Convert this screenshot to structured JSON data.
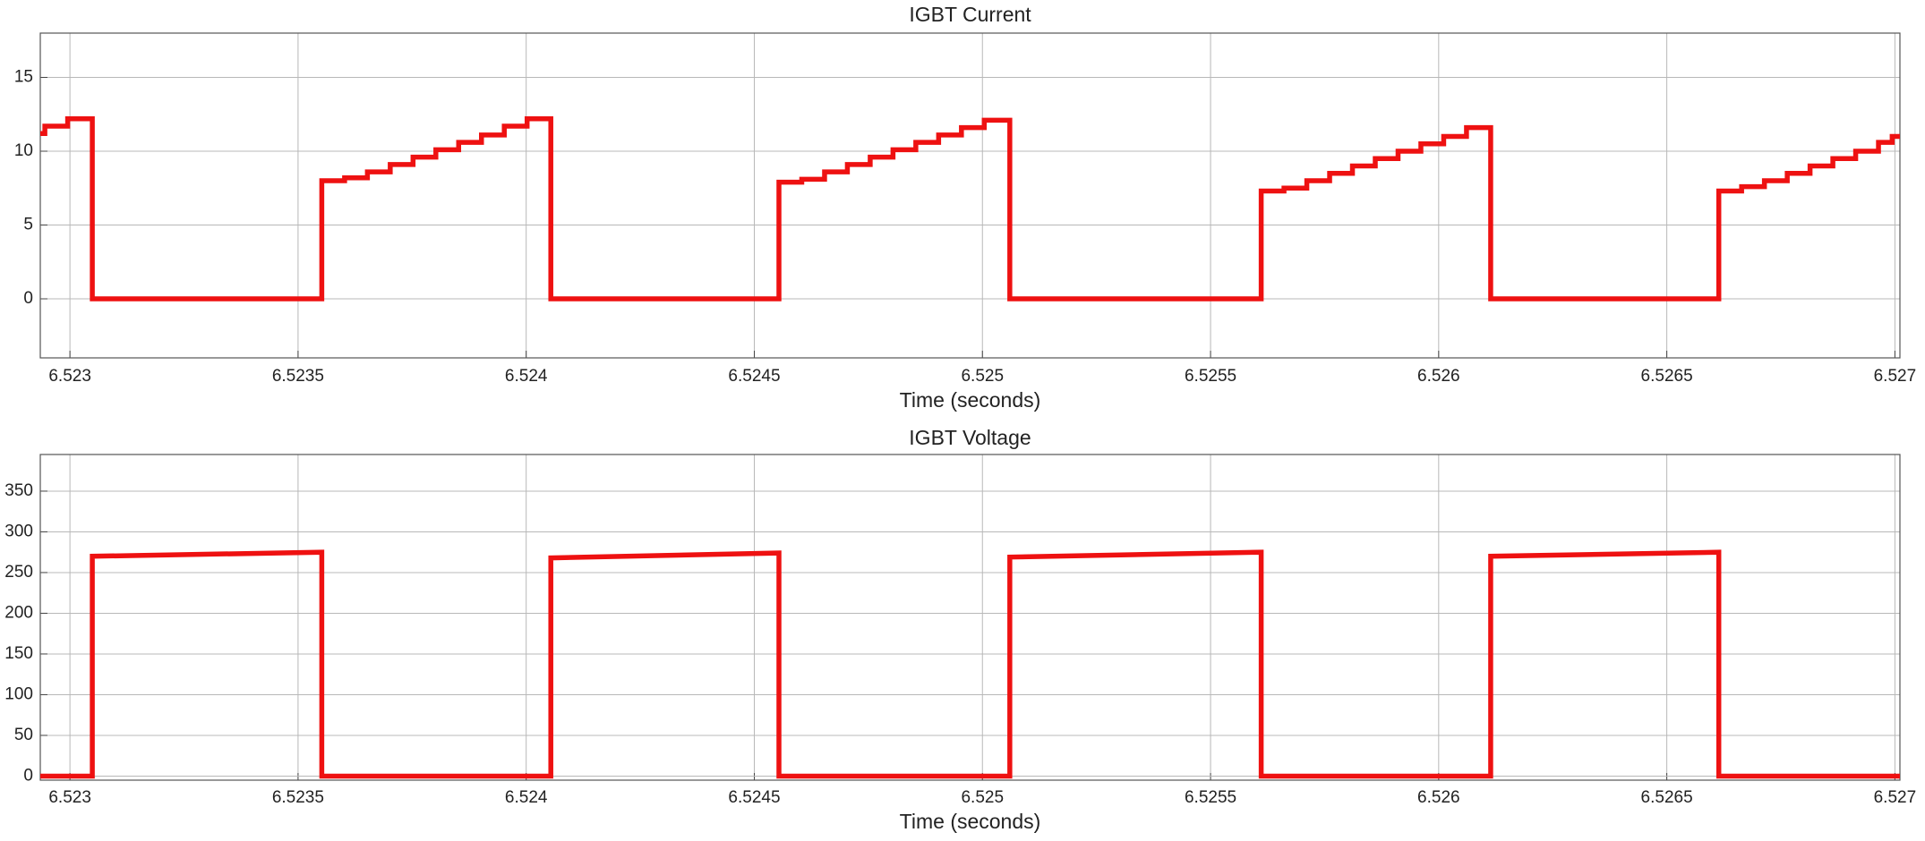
{
  "chart_data": [
    {
      "type": "line",
      "title": "IGBT Current",
      "xlabel": "Time (seconds)",
      "color": "#ee1111",
      "grid": true,
      "xlim": [
        6.522935,
        6.527011
      ],
      "ylim": [
        -4,
        18
      ],
      "xticks": [
        6.523,
        6.5235,
        6.524,
        6.5245,
        6.525,
        6.5255,
        6.526,
        6.5265,
        6.527
      ],
      "yticks": [
        0,
        5,
        10,
        15
      ],
      "x": [
        6.522935,
        6.522945,
        6.522945,
        6.522995,
        6.522995,
        6.523049,
        6.523049,
        6.523552,
        6.523552,
        6.523602,
        6.523602,
        6.523652,
        6.523652,
        6.523702,
        6.523702,
        6.523752,
        6.523752,
        6.523802,
        6.523802,
        6.523852,
        6.523852,
        6.523902,
        6.523902,
        6.523952,
        6.523952,
        6.524002,
        6.524002,
        6.524054,
        6.524054,
        6.524554,
        6.524554,
        6.524604,
        6.524604,
        6.524654,
        6.524654,
        6.524704,
        6.524704,
        6.524754,
        6.524754,
        6.524804,
        6.524804,
        6.524854,
        6.524854,
        6.524904,
        6.524904,
        6.524954,
        6.524954,
        6.525004,
        6.525004,
        6.52506,
        6.52506,
        6.525611,
        6.525611,
        6.525661,
        6.525661,
        6.525711,
        6.525711,
        6.525761,
        6.525761,
        6.525811,
        6.525811,
        6.525861,
        6.525861,
        6.525911,
        6.525911,
        6.525961,
        6.525961,
        6.526011,
        6.526011,
        6.526061,
        6.526061,
        6.526114,
        6.526114,
        6.526614,
        6.526614,
        6.526664,
        6.526664,
        6.526714,
        6.526714,
        6.526764,
        6.526764,
        6.526814,
        6.526814,
        6.526864,
        6.526864,
        6.526914,
        6.526914,
        6.526964,
        6.526964,
        6.526994,
        6.526994,
        6.527011
      ],
      "values": [
        11.2,
        11.2,
        11.7,
        11.7,
        12.2,
        12.2,
        0,
        0,
        8.0,
        8.0,
        8.2,
        8.2,
        8.6,
        8.6,
        9.1,
        9.1,
        9.6,
        9.6,
        10.1,
        10.1,
        10.6,
        10.6,
        11.1,
        11.1,
        11.7,
        11.7,
        12.2,
        12.2,
        0,
        0,
        7.9,
        7.9,
        8.1,
        8.1,
        8.6,
        8.6,
        9.1,
        9.1,
        9.6,
        9.6,
        10.1,
        10.1,
        10.6,
        10.6,
        11.1,
        11.1,
        11.6,
        11.6,
        12.1,
        12.1,
        0,
        0,
        7.3,
        7.3,
        7.5,
        7.5,
        8.0,
        8.0,
        8.5,
        8.5,
        9.0,
        9.0,
        9.5,
        9.5,
        10.0,
        10.0,
        10.5,
        10.5,
        11.0,
        11.0,
        11.6,
        11.6,
        0,
        0,
        7.3,
        7.3,
        7.6,
        7.6,
        8.0,
        8.0,
        8.5,
        8.5,
        9.0,
        9.0,
        9.5,
        9.5,
        10.0,
        10.0,
        10.6,
        10.6,
        11.0,
        11.0
      ]
    },
    {
      "type": "line",
      "title": "IGBT Voltage",
      "xlabel": "Time (seconds)",
      "color": "#ee1111",
      "grid": true,
      "xlim": [
        6.522935,
        6.527011
      ],
      "ylim": [
        -5,
        395
      ],
      "xticks": [
        6.523,
        6.5235,
        6.524,
        6.5245,
        6.525,
        6.5255,
        6.526,
        6.5265,
        6.527
      ],
      "yticks": [
        0,
        50,
        100,
        150,
        200,
        250,
        300,
        350
      ],
      "x": [
        6.522935,
        6.523049,
        6.523049,
        6.523552,
        6.523552,
        6.524054,
        6.524054,
        6.524554,
        6.524554,
        6.52506,
        6.52506,
        6.525611,
        6.525611,
        6.526114,
        6.526114,
        6.526614,
        6.526614,
        6.527011
      ],
      "values": [
        0,
        0,
        270,
        275,
        0,
        0,
        268,
        274,
        0,
        0,
        269,
        275,
        0,
        0,
        270,
        275,
        0,
        0
      ]
    }
  ]
}
